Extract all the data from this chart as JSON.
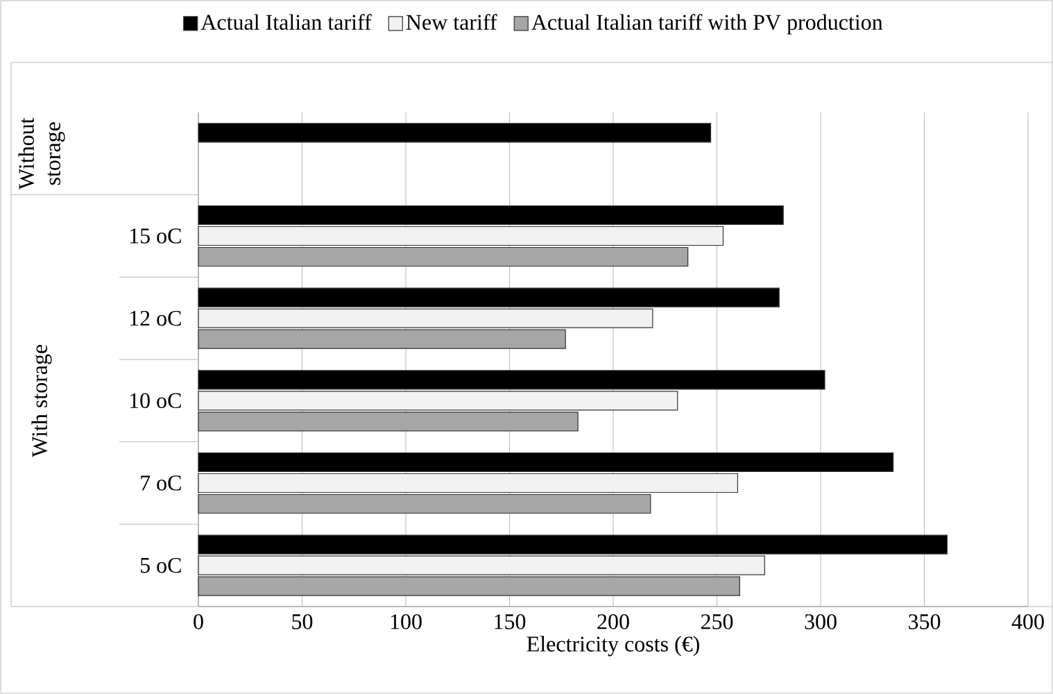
{
  "chart_data": {
    "type": "bar",
    "orientation": "horizontal",
    "xlabel": "Electricity costs (€)",
    "categories": [
      null,
      "15 oC",
      "12 oC",
      "10 oC",
      "7 oC",
      "5 oC"
    ],
    "series": [
      {
        "name": "Actual Italian tariff",
        "color": "#000000",
        "values": [
          247,
          282,
          280,
          302,
          335,
          361
        ]
      },
      {
        "name": "New tariff",
        "color": "#f2f2f2",
        "values": [
          null,
          253,
          219,
          231,
          260,
          273
        ]
      },
      {
        "name": "Actual Italian tariff with PV production",
        "color": "#a6a6a6",
        "values": [
          null,
          236,
          177,
          183,
          218,
          261
        ]
      }
    ],
    "annotations": [
      "Without storage",
      "With storage"
    ],
    "xlim": [
      0,
      400
    ],
    "xticks": [
      0,
      50,
      100,
      150,
      200,
      250,
      300,
      350,
      400
    ],
    "grid": "x",
    "legend": "top"
  }
}
